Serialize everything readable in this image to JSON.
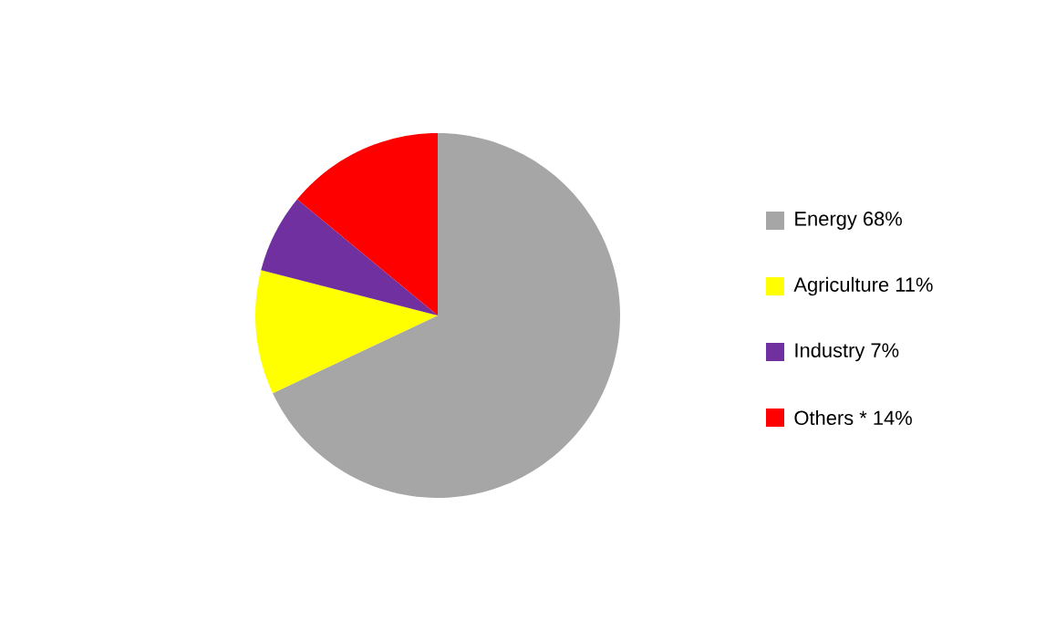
{
  "chart_data": {
    "type": "pie",
    "categories": [
      "Energy 68%",
      "Agriculture 11%",
      "Industry 7%",
      "Others * 14%"
    ],
    "values": [
      68,
      11,
      7,
      14
    ],
    "colors": [
      "#a6a6a6",
      "#ffff00",
      "#7030a0",
      "#ff0000"
    ],
    "legend": "right"
  }
}
